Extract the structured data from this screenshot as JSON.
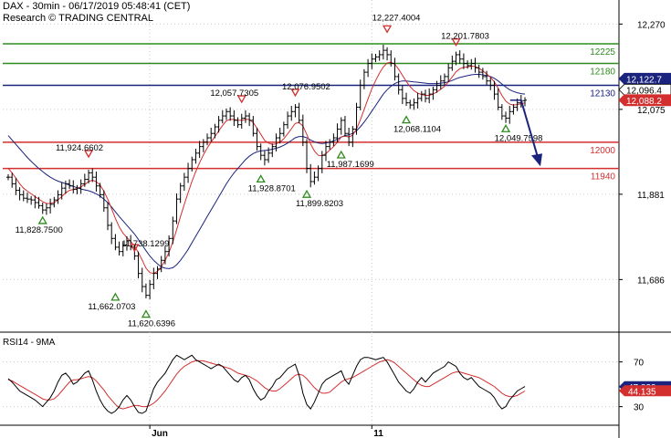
{
  "header": {
    "line1": "DAX - 30min - 06/17/2019 05:48:41 (CET)",
    "line2": "Research © TRADING CENTRAL"
  },
  "chart_data": [
    {
      "type": "line",
      "title": "",
      "axis_ticks": [
        "12,270",
        "12,075",
        "11,881",
        "11,686"
      ],
      "ylim": [
        11570,
        12325
      ],
      "x_labels": [
        {
          "label": "Jun",
          "index": 37
        },
        {
          "label": "11",
          "index": 95
        }
      ],
      "horizontal_levels": [
        {
          "label": "12225",
          "value": 12225,
          "color": "#2e8b1e"
        },
        {
          "label": "12180",
          "value": 12180,
          "color": "#2e8b1e"
        },
        {
          "label": "12130",
          "value": 12130,
          "color": "#1a237e"
        },
        {
          "label": "12000",
          "value": 12000,
          "color": "#d32f2f"
        },
        {
          "label": "11940",
          "value": 11940,
          "color": "#d32f2f"
        }
      ],
      "price_tags": [
        {
          "label": "12,122.7",
          "value": 12145,
          "bg": "#1a237e",
          "fg": "#ffffff"
        },
        {
          "label": "12,096.4",
          "value": 12120,
          "bg": "#ffffff",
          "fg": "#000000"
        },
        {
          "label": "12,088.2",
          "value": 12096,
          "bg": "#d32f2f",
          "fg": "#ffffff"
        }
      ],
      "annotations": [
        {
          "label": "11,924.6602",
          "index": 21,
          "value": 11960,
          "marker": "down",
          "text_dx": -10,
          "text_dy": -10
        },
        {
          "label": "11,828.7500",
          "index": 9,
          "value": 11835,
          "marker": "up",
          "text_dx": -4,
          "text_dy": 20
        },
        {
          "label": "11,738.1299",
          "index": 33,
          "value": 11745,
          "marker": "down",
          "text_dx": 12,
          "text_dy": -8
        },
        {
          "label": "11,662.0703",
          "index": 28,
          "value": 11660,
          "marker": "up",
          "text_dx": -4,
          "text_dy": 20
        },
        {
          "label": "11,620.6396",
          "index": 36,
          "value": 11621,
          "marker": "up",
          "text_dx": 6,
          "text_dy": 20
        },
        {
          "label": "12,057.7305",
          "index": 61,
          "value": 12085,
          "marker": "down",
          "text_dx": -8,
          "text_dy": -10
        },
        {
          "label": "12,076.9502",
          "index": 75,
          "value": 12100,
          "marker": "down",
          "text_dx": 12,
          "text_dy": -10
        },
        {
          "label": "11,928.8701",
          "index": 66,
          "value": 11930,
          "marker": "up",
          "text_dx": 12,
          "text_dy": 20
        },
        {
          "label": "11,899.8203",
          "index": 78,
          "value": 11895,
          "marker": "up",
          "text_dx": 14,
          "text_dy": 20
        },
        {
          "label": "11,987.1699",
          "index": 87,
          "value": 11985,
          "marker": "up",
          "text_dx": 10,
          "text_dy": 20
        },
        {
          "label": "12,227.4004",
          "index": 99,
          "value": 12245,
          "marker": "down",
          "text_dx": 10,
          "text_dy": -16
        },
        {
          "label": "12,068.1104",
          "index": 104,
          "value": 12065,
          "marker": "up",
          "text_dx": 12,
          "text_dy": 20
        },
        {
          "label": "12,201.7803",
          "index": 117,
          "value": 12215,
          "marker": "down",
          "text_dx": 10,
          "text_dy": -10
        },
        {
          "label": "12,049.7598",
          "index": 130,
          "value": 12045,
          "marker": "up",
          "text_dx": 14,
          "text_dy": 20
        }
      ],
      "close": [
        11920,
        11905,
        11890,
        11880,
        11872,
        11870,
        11868,
        11862,
        11855,
        11845,
        11850,
        11858,
        11868,
        11880,
        11895,
        11905,
        11900,
        11892,
        11895,
        11905,
        11915,
        11930,
        11920,
        11900,
        11880,
        11850,
        11810,
        11780,
        11760,
        11750,
        11765,
        11775,
        11760,
        11740,
        11700,
        11670,
        11650,
        11675,
        11700,
        11710,
        11730,
        11750,
        11780,
        11820,
        11870,
        11900,
        11920,
        11940,
        11960,
        11975,
        11990,
        12000,
        12010,
        12020,
        12035,
        12050,
        12060,
        12070,
        12060,
        12050,
        12040,
        12055,
        12060,
        12050,
        12020,
        11990,
        11970,
        11960,
        11975,
        11990,
        12010,
        12020,
        12040,
        12060,
        12070,
        12080,
        12050,
        12000,
        11940,
        11910,
        11920,
        11940,
        11970,
        11990,
        12000,
        12010,
        12030,
        12050,
        12020,
        12000,
        12030,
        12080,
        12130,
        12160,
        12180,
        12190,
        12195,
        12200,
        12210,
        12200,
        12180,
        12150,
        12120,
        12100,
        12090,
        12085,
        12090,
        12100,
        12110,
        12100,
        12110,
        12120,
        12130,
        12140,
        12150,
        12170,
        12185,
        12200,
        12190,
        12180,
        12175,
        12180,
        12170,
        12160,
        12150,
        12140,
        12130,
        12110,
        12080,
        12060,
        12055,
        12070,
        12080,
        12090,
        12095,
        12096
      ],
      "ma_short": [
        11940,
        11930,
        11918,
        11905,
        11895,
        11888,
        11882,
        11876,
        11870,
        11864,
        11860,
        11860,
        11862,
        11868,
        11876,
        11884,
        11890,
        11892,
        11895,
        11898,
        11903,
        11910,
        11913,
        11910,
        11902,
        11888,
        11870,
        11848,
        11826,
        11806,
        11792,
        11782,
        11773,
        11763,
        11748,
        11731,
        11712,
        11702,
        11700,
        11705,
        11715,
        11730,
        11748,
        11772,
        11800,
        11830,
        11858,
        11885,
        11910,
        11933,
        11953,
        11971,
        11987,
        12000,
        12013,
        12026,
        12038,
        12049,
        12052,
        12052,
        12050,
        12050,
        12052,
        12052,
        12045,
        12032,
        12018,
        12004,
        11998,
        11995,
        11996,
        12000,
        12008,
        12019,
        12031,
        12043,
        12045,
        12037,
        12018,
        11996,
        11980,
        11970,
        11969,
        11974,
        11982,
        11990,
        12000,
        12012,
        12014,
        12012,
        12016,
        12030,
        12051,
        12075,
        12099,
        12122,
        12141,
        12158,
        12172,
        12181,
        12183,
        12178,
        12167,
        12153,
        12139,
        12127,
        12118,
        12112,
        12109,
        12107,
        12107,
        12110,
        12115,
        12121,
        12128,
        12138,
        12149,
        12161,
        12168,
        12171,
        12172,
        12174,
        12173,
        12169,
        12163,
        12156,
        12148,
        12138,
        12123,
        12107,
        12094,
        12087,
        12085,
        12086,
        12088,
        12090
      ],
      "ma_long": [
        12015,
        12005,
        11995,
        11985,
        11975,
        11965,
        11956,
        11948,
        11940,
        11933,
        11926,
        11920,
        11915,
        11911,
        11908,
        11905,
        11902,
        11899,
        11896,
        11893,
        11891,
        11889,
        11886,
        11882,
        11877,
        11870,
        11862,
        11852,
        11841,
        11830,
        11820,
        11810,
        11800,
        11790,
        11778,
        11765,
        11752,
        11740,
        11730,
        11722,
        11715,
        11712,
        11711,
        11713,
        11720,
        11730,
        11742,
        11755,
        11770,
        11785,
        11800,
        11815,
        11830,
        11845,
        11860,
        11875,
        11890,
        11905,
        11918,
        11930,
        11940,
        11950,
        11960,
        11968,
        11974,
        11978,
        11980,
        11981,
        11982,
        11984,
        11986,
        11989,
        11993,
        11998,
        12004,
        12010,
        12013,
        12013,
        12010,
        12005,
        12001,
        11998,
        11997,
        11998,
        12000,
        12003,
        12007,
        12012,
        12015,
        12017,
        12020,
        12026,
        12035,
        12046,
        12058,
        12071,
        12084,
        12097,
        12110,
        12120,
        12128,
        12134,
        12138,
        12140,
        12140,
        12139,
        12138,
        12137,
        12136,
        12135,
        12134,
        12134,
        12134,
        12135,
        12136,
        12138,
        12141,
        12145,
        12148,
        12150,
        12152,
        12154,
        12155,
        12155,
        12154,
        12152,
        12150,
        12146,
        12140,
        12133,
        12126,
        12120,
        12116,
        12113,
        12111,
        12110
      ],
      "forecast": {
        "from_index": 134,
        "from_value": 12096,
        "to_value": 11945
      }
    },
    {
      "type": "line",
      "title": "RSI14 - 9MA",
      "ylim": [
        15,
        95
      ],
      "axis_ticks": [
        "70",
        "30"
      ],
      "tags": [
        {
          "label": "47.839",
          "value": 47.839,
          "bg": "#1a237e",
          "fg": "#ffffff"
        },
        {
          "label": "44.135",
          "value": 44.135,
          "bg": "#d32f2f",
          "fg": "#ffffff"
        }
      ],
      "rsi": [
        55,
        52,
        48,
        44,
        42,
        40,
        38,
        36,
        33,
        30,
        34,
        38,
        44,
        52,
        58,
        60,
        56,
        50,
        52,
        56,
        60,
        62,
        54,
        44,
        36,
        30,
        26,
        24,
        26,
        30,
        36,
        40,
        36,
        30,
        25,
        24,
        26,
        36,
        46,
        52,
        56,
        60,
        66,
        72,
        76,
        74,
        72,
        74,
        76,
        72,
        70,
        68,
        66,
        64,
        66,
        68,
        66,
        62,
        58,
        54,
        52,
        56,
        58,
        54,
        46,
        40,
        36,
        38,
        44,
        48,
        54,
        56,
        60,
        64,
        66,
        68,
        58,
        42,
        32,
        28,
        34,
        42,
        50,
        54,
        56,
        58,
        60,
        62,
        54,
        50,
        58,
        66,
        72,
        74,
        74,
        73,
        72,
        73,
        74,
        70,
        64,
        58,
        52,
        48,
        44,
        42,
        46,
        52,
        56,
        52,
        56,
        60,
        62,
        64,
        66,
        70,
        68,
        66,
        60,
        56,
        54,
        56,
        52,
        48,
        46,
        44,
        42,
        38,
        32,
        28,
        30,
        36,
        40,
        44,
        46,
        48
      ],
      "rsi_ma": [
        54,
        53,
        51,
        49,
        47,
        45,
        43,
        41,
        39,
        37,
        36,
        36,
        37,
        40,
        44,
        48,
        52,
        54,
        54,
        55,
        56,
        57,
        56,
        53,
        49,
        45,
        40,
        36,
        32,
        29,
        28,
        29,
        30,
        31,
        31,
        30,
        30,
        31,
        33,
        36,
        40,
        44,
        49,
        54,
        59,
        63,
        66,
        68,
        70,
        71,
        71,
        71,
        70,
        69,
        68,
        67,
        66,
        65,
        64,
        62,
        60,
        59,
        58,
        57,
        55,
        53,
        50,
        47,
        45,
        44,
        44,
        46,
        49,
        52,
        55,
        58,
        59,
        58,
        55,
        51,
        47,
        44,
        42,
        42,
        43,
        46,
        49,
        52,
        54,
        55,
        56,
        58,
        60,
        62,
        64,
        66,
        68,
        70,
        71,
        72,
        71,
        69,
        66,
        63,
        60,
        57,
        54,
        51,
        49,
        48,
        48,
        50,
        52,
        54,
        56,
        58,
        60,
        61,
        61,
        60,
        59,
        58,
        57,
        56,
        54,
        52,
        50,
        48,
        45,
        42,
        40,
        39,
        39,
        40,
        42,
        44
      ]
    }
  ]
}
